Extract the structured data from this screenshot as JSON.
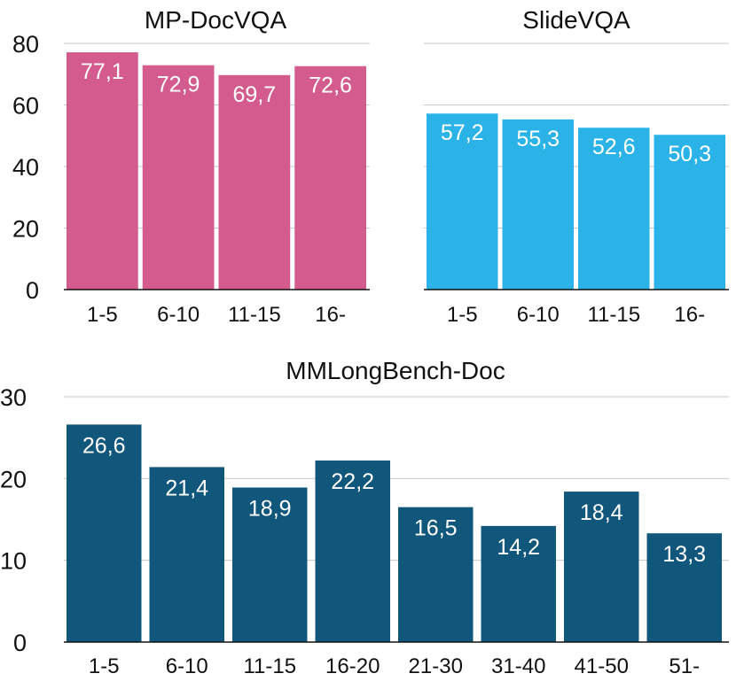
{
  "chart_data": [
    {
      "type": "bar",
      "title": "MP-DocVQA",
      "categories": [
        "1-5",
        "6-10",
        "11-15",
        "16-"
      ],
      "values": [
        77.1,
        72.9,
        69.7,
        72.6
      ],
      "value_labels": [
        "77,1",
        "72,9",
        "69,7",
        "72,6"
      ],
      "ylim": [
        0,
        80
      ],
      "yticks": [
        "0",
        "20",
        "40",
        "60",
        "80"
      ],
      "grid": true,
      "color": "#D35B8E"
    },
    {
      "type": "bar",
      "title": "SlideVQA",
      "categories": [
        "1-5",
        "6-10",
        "11-15",
        "16-"
      ],
      "values": [
        57.2,
        55.3,
        52.6,
        50.3
      ],
      "value_labels": [
        "57,2",
        "55,3",
        "52,6",
        "50,3"
      ],
      "ylim": [
        0,
        80
      ],
      "yticks": [],
      "grid": true,
      "color": "#2BB3E8"
    },
    {
      "type": "bar",
      "title": "MMLongBench-Doc",
      "categories": [
        "1-5",
        "6-10",
        "11-15",
        "16-20",
        "21-30",
        "31-40",
        "41-50",
        "51-"
      ],
      "values": [
        26.6,
        21.4,
        18.9,
        22.2,
        16.5,
        14.2,
        18.4,
        13.3
      ],
      "value_labels": [
        "26,6",
        "21,4",
        "18,9",
        "22,2",
        "16,5",
        "14,2",
        "18,4",
        "13,3"
      ],
      "ylim": [
        0,
        30
      ],
      "yticks": [
        "0",
        "10",
        "20",
        "30"
      ],
      "grid": true,
      "color": "#11577C"
    }
  ]
}
